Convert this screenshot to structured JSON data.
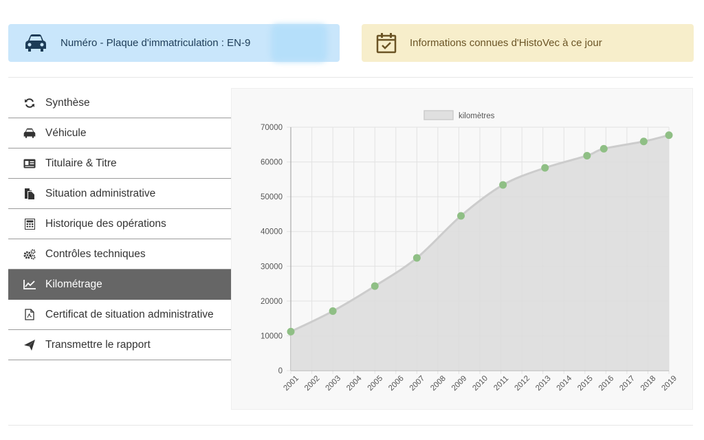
{
  "header": {
    "plate_label": "Numéro - Plaque d'immatriculation : EN-9",
    "info_label": "Informations connues d'HistoVec à ce jour",
    "plate_icon": "car-icon",
    "info_icon": "calendar-check-icon"
  },
  "menu": {
    "items": [
      {
        "label": "Synthèse",
        "icon": "refresh-icon"
      },
      {
        "label": "Véhicule",
        "icon": "car-icon"
      },
      {
        "label": "Titulaire & Titre",
        "icon": "id-card-icon"
      },
      {
        "label": "Situation administrative",
        "icon": "documents-icon"
      },
      {
        "label": "Historique des opérations",
        "icon": "calculator-icon"
      },
      {
        "label": "Contrôles techniques",
        "icon": "cogs-icon"
      },
      {
        "label": "Kilométrage",
        "icon": "line-chart-icon",
        "active": true
      },
      {
        "label": "Certificat de situation administrative",
        "icon": "pdf-file-icon"
      },
      {
        "label": "Transmettre le rapport",
        "icon": "paper-plane-icon"
      }
    ]
  },
  "colors": {
    "active_menu_bg": "#666666",
    "plate_banner_bg": "#c9e6fb",
    "info_banner_bg": "#f7eecb",
    "point_color": "#8fbf85",
    "area_fill": "#dcdcdc",
    "line_color": "#cccccc"
  },
  "chart_data": {
    "type": "area",
    "title": "",
    "xlabel": "",
    "ylabel": "",
    "xlim": [
      2001,
      2019
    ],
    "ylim": [
      0,
      70000
    ],
    "x_ticks": [
      "2001",
      "2002",
      "2003",
      "2004",
      "2005",
      "2006",
      "2007",
      "2008",
      "2009",
      "2010",
      "2011",
      "2012",
      "2013",
      "2014",
      "2015",
      "2016",
      "2017",
      "2018",
      "2019"
    ],
    "y_ticks": [
      "0",
      "10000",
      "20000",
      "30000",
      "40000",
      "50000",
      "60000",
      "70000"
    ],
    "legend": "top-center",
    "grid": true,
    "series": [
      {
        "name": "kilomètres",
        "points": [
          {
            "x": 2001.0,
            "y": 11200
          },
          {
            "x": 2003.0,
            "y": 17100
          },
          {
            "x": 2005.0,
            "y": 24300
          },
          {
            "x": 2007.0,
            "y": 32400
          },
          {
            "x": 2009.1,
            "y": 44500
          },
          {
            "x": 2011.1,
            "y": 53400
          },
          {
            "x": 2013.1,
            "y": 58300
          },
          {
            "x": 2015.1,
            "y": 61800
          },
          {
            "x": 2015.9,
            "y": 63800
          },
          {
            "x": 2017.8,
            "y": 65900
          },
          {
            "x": 2020.0,
            "y": 67700
          }
        ]
      }
    ]
  }
}
